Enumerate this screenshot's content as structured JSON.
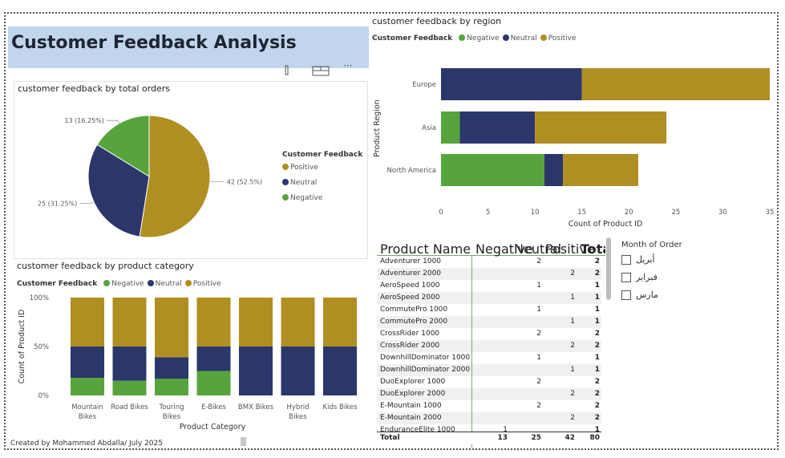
{
  "page_title": "Customer Feedback Analysis",
  "footer": "Created by Mohammed Abdalla/ July 2025",
  "colors": {
    "negative": "#58a43c",
    "neutral": "#2b376b",
    "positive": "#b08f22"
  },
  "legend_title": "Customer Feedback",
  "legend_labels": {
    "negative": "Negative",
    "neutral": "Neutral",
    "positive": "Positive"
  },
  "chart_data": [
    {
      "type": "pie",
      "title": "customer feedback by total orders",
      "legend_title": "Customer Feedback",
      "legend_placement": "right",
      "slices": [
        {
          "name": "Positive",
          "value": 42,
          "label": "42 (52.5%)"
        },
        {
          "name": "Neutral",
          "value": 25,
          "label": "25 (31.25%)"
        },
        {
          "name": "Negative",
          "value": 13,
          "label": "13 (16.25%)"
        }
      ]
    },
    {
      "type": "bar",
      "orientation": "horizontal",
      "stacked": true,
      "title": "customer feedback by region",
      "xlabel": "Count of Product ID",
      "ylabel": "Product Region",
      "xlim": [
        0,
        35
      ],
      "xticks": [
        "0",
        "5",
        "10",
        "15",
        "20",
        "25",
        "30",
        "35"
      ],
      "categories": [
        "Europe",
        "Asia",
        "North America"
      ],
      "series": [
        {
          "name": "Negative",
          "values": [
            0,
            2,
            11
          ]
        },
        {
          "name": "Neutral",
          "values": [
            15,
            8,
            2
          ]
        },
        {
          "name": "Positive",
          "values": [
            20,
            14,
            8
          ]
        }
      ]
    },
    {
      "type": "bar",
      "stacked": "percent",
      "title": "customer feedback by product category",
      "xlabel": "Product Category",
      "ylabel": "Count of Product ID",
      "ylim": [
        0,
        100
      ],
      "yticks": [
        "0%",
        "50%",
        "100%"
      ],
      "categories": [
        "Mountain Bikes",
        "Road Bikes",
        "Touring Bikes",
        "E-Bikes",
        "BMX Bikes",
        "Hybrid Bikes",
        "Kids Bikes"
      ],
      "series": [
        {
          "name": "Negative",
          "values": [
            18,
            15,
            17,
            25,
            0,
            0,
            0
          ]
        },
        {
          "name": "Neutral",
          "values": [
            32,
            35,
            22,
            25,
            50,
            50,
            50
          ]
        },
        {
          "name": "Positive",
          "values": [
            50,
            50,
            61,
            50,
            50,
            50,
            50
          ]
        }
      ]
    },
    {
      "type": "table",
      "columns": [
        "Product Name",
        "Negative",
        "Neutral",
        "Positive",
        "Total"
      ],
      "rows": [
        [
          "Adventurer 1000",
          "",
          "2",
          "",
          "2"
        ],
        [
          "Adventurer 2000",
          "",
          "",
          "2",
          "2"
        ],
        [
          "AeroSpeed 1000",
          "",
          "1",
          "",
          "1"
        ],
        [
          "AeroSpeed 2000",
          "",
          "",
          "1",
          "1"
        ],
        [
          "CommutePro 1000",
          "",
          "1",
          "",
          "1"
        ],
        [
          "CommutePro 2000",
          "",
          "",
          "1",
          "1"
        ],
        [
          "CrossRider 1000",
          "",
          "2",
          "",
          "2"
        ],
        [
          "CrossRider 2000",
          "",
          "",
          "2",
          "2"
        ],
        [
          "DownhillDominator 1000",
          "",
          "1",
          "",
          "1"
        ],
        [
          "DownhillDominator 2000",
          "",
          "",
          "1",
          "1"
        ],
        [
          "DuoExplorer 1000",
          "",
          "2",
          "",
          "2"
        ],
        [
          "DuoExplorer 2000",
          "",
          "",
          "2",
          "2"
        ],
        [
          "E-Mountain 1000",
          "",
          "2",
          "",
          "2"
        ],
        [
          "E-Mountain 2000",
          "",
          "",
          "2",
          "2"
        ],
        [
          "EnduranceElite 1000",
          "1",
          "",
          "",
          "1"
        ]
      ],
      "total": [
        "Total",
        "13",
        "25",
        "42",
        "80"
      ]
    }
  ],
  "slicer": {
    "title": "Month of Order",
    "items": [
      "أبريل",
      "فبراير",
      "مارس"
    ]
  }
}
